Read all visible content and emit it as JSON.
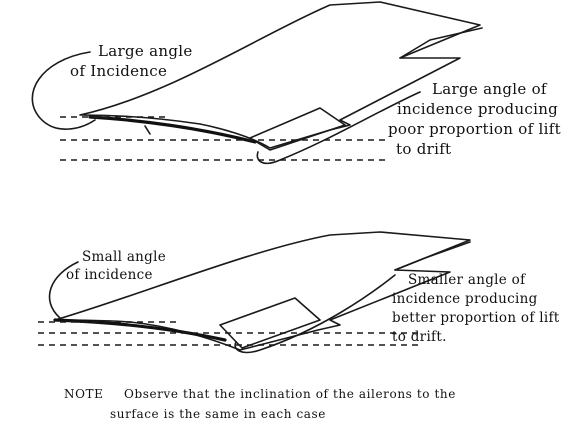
{
  "top_diagram": {
    "label_angle": [
      "Large angle",
      "of Incidence"
    ],
    "label_effect": [
      "Large angle of",
      "incidence producing",
      "poor proportion of lift",
      "to drift"
    ]
  },
  "bottom_diagram": {
    "label_angle": [
      "Small angle",
      "of incidence"
    ],
    "label_effect": [
      "Smaller angle of",
      "incidence producing",
      "better proportion of lift",
      "to drift."
    ]
  },
  "note": {
    "prefix": "NOTE",
    "line1": "Observe that the inclination of the ailerons to the",
    "line2": "surface is the same in each case"
  }
}
